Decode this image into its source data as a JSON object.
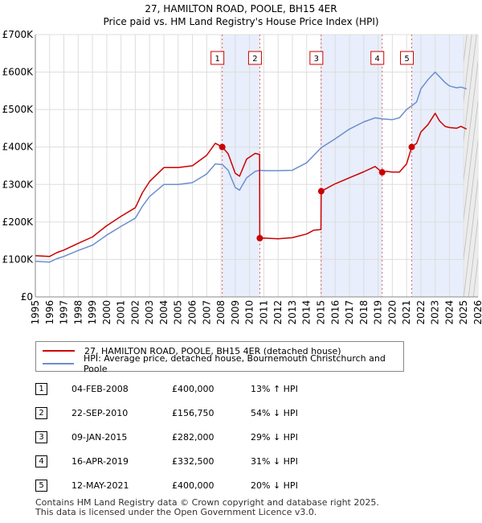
{
  "chart_data": {
    "type": "line",
    "title": "27, HAMILTON ROAD, POOLE, BH15 4ER",
    "subtitle": "Price paid vs. HM Land Registry's House Price Index (HPI)",
    "xlim": [
      1995,
      2026
    ],
    "ylim": [
      0,
      700000
    ],
    "x_ticks": [
      1995,
      1996,
      1997,
      1998,
      1999,
      2000,
      2001,
      2002,
      2003,
      2004,
      2005,
      2006,
      2007,
      2008,
      2009,
      2010,
      2011,
      2012,
      2013,
      2014,
      2015,
      2016,
      2017,
      2018,
      2019,
      2020,
      2021,
      2022,
      2023,
      2024,
      2025,
      2026
    ],
    "y_ticks": [
      {
        "value": 0,
        "label": "£0"
      },
      {
        "value": 100000,
        "label": "£100K"
      },
      {
        "value": 200000,
        "label": "£200K"
      },
      {
        "value": 300000,
        "label": "£300K"
      },
      {
        "value": 400000,
        "label": "£400K"
      },
      {
        "value": 500000,
        "label": "£500K"
      },
      {
        "value": 600000,
        "label": "£600K"
      },
      {
        "value": 700000,
        "label": "£700K"
      }
    ],
    "shaded_ranges": [
      [
        2008.09,
        2010.72
      ],
      [
        2015.02,
        2019.29
      ],
      [
        2021.36,
        2025.0
      ]
    ],
    "forecast_start": 2025.0,
    "sale_markers": [
      {
        "label": "1",
        "x": 2008.09,
        "y": 400000
      },
      {
        "label": "2",
        "x": 2010.72,
        "y": 156750
      },
      {
        "label": "3",
        "x": 2015.02,
        "y": 282000
      },
      {
        "label": "4",
        "x": 2019.29,
        "y": 332500
      },
      {
        "label": "5",
        "x": 2021.36,
        "y": 400000
      }
    ],
    "series": [
      {
        "name": "27, HAMILTON ROAD, POOLE, BH15 4ER (detached house)",
        "color": "#cc0000",
        "x": [
          1995.0,
          1996.0,
          1996.5,
          1997.0,
          1998.0,
          1999.0,
          2000.0,
          2001.0,
          2002.0,
          2002.5,
          2003.0,
          2004.0,
          2005.0,
          2006.0,
          2007.0,
          2007.6,
          2008.09,
          2008.5,
          2009.0,
          2009.3,
          2009.8,
          2010.4,
          2010.71,
          2010.72,
          2011.0,
          2012.0,
          2013.0,
          2014.0,
          2014.5,
          2015.0,
          2015.02,
          2016.0,
          2017.0,
          2018.0,
          2018.8,
          2019.29,
          2019.6,
          2020.0,
          2020.5,
          2021.0,
          2021.36,
          2021.7,
          2022.0,
          2022.5,
          2023.0,
          2023.3,
          2023.7,
          2024.0,
          2024.5,
          2024.8,
          2025.2
        ],
        "y": [
          110000,
          108000,
          118000,
          125000,
          143000,
          160000,
          190000,
          215000,
          238000,
          278000,
          308000,
          345000,
          345000,
          350000,
          378000,
          410000,
          400000,
          382000,
          330000,
          322000,
          368000,
          383000,
          380000,
          156750,
          157000,
          155000,
          158000,
          168000,
          178000,
          180000,
          282000,
          302000,
          318000,
          334000,
          348000,
          332500,
          335000,
          333000,
          333000,
          355000,
          400000,
          410000,
          440000,
          460000,
          490000,
          470000,
          455000,
          452000,
          450000,
          455000,
          448000
        ]
      },
      {
        "name": "HPI: Average price, detached house, Bournemouth Christchurch and Poole",
        "color": "#6a8fcf",
        "x": [
          1995.0,
          1996.0,
          1996.5,
          1997.0,
          1998.0,
          1999.0,
          2000.0,
          2001.0,
          2002.0,
          2002.5,
          2003.0,
          2004.0,
          2005.0,
          2006.0,
          2007.0,
          2007.6,
          2008.09,
          2008.5,
          2009.0,
          2009.3,
          2009.8,
          2010.4,
          2010.72,
          2011.0,
          2012.0,
          2013.0,
          2014.0,
          2015.02,
          2016.0,
          2017.0,
          2018.0,
          2018.8,
          2019.29,
          2020.0,
          2020.5,
          2021.0,
          2021.36,
          2021.7,
          2022.0,
          2022.5,
          2023.0,
          2023.3,
          2023.7,
          2024.0,
          2024.5,
          2024.8,
          2025.2
        ],
        "y": [
          95000,
          93000,
          102000,
          108000,
          124000,
          138000,
          165000,
          188000,
          210000,
          242000,
          268000,
          300000,
          300000,
          305000,
          328000,
          355000,
          353000,
          338000,
          292000,
          285000,
          318000,
          335000,
          338000,
          337000,
          337000,
          338000,
          358000,
          398000,
          422000,
          448000,
          467000,
          478000,
          475000,
          473000,
          478000,
          500000,
          510000,
          520000,
          555000,
          580000,
          600000,
          588000,
          572000,
          563000,
          558000,
          560000,
          555000
        ]
      }
    ]
  },
  "legend": {
    "property_label": "27, HAMILTON ROAD, POOLE, BH15 4ER (detached house)",
    "hpi_label": "HPI: Average price, detached house, Bournemouth Christchurch and Poole"
  },
  "transactions": [
    {
      "num": "1",
      "date": "04-FEB-2008",
      "price": "£400,000",
      "hpi": "13% ↑ HPI"
    },
    {
      "num": "2",
      "date": "22-SEP-2010",
      "price": "£156,750",
      "hpi": "54% ↓ HPI"
    },
    {
      "num": "3",
      "date": "09-JAN-2015",
      "price": "£282,000",
      "hpi": "29% ↓ HPI"
    },
    {
      "num": "4",
      "date": "16-APR-2019",
      "price": "£332,500",
      "hpi": "31% ↓ HPI"
    },
    {
      "num": "5",
      "date": "12-MAY-2021",
      "price": "£400,000",
      "hpi": "20% ↓ HPI"
    }
  ],
  "footer": {
    "line1": "Contains HM Land Registry data © Crown copyright and database right 2025.",
    "line2": "This data is licensed under the Open Government Licence v3.0."
  }
}
